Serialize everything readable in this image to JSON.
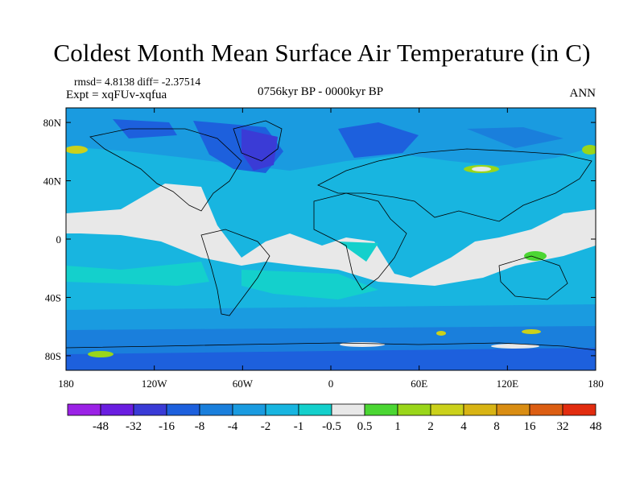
{
  "title": "Coldest Month Mean Surface Air Temperature (in C)",
  "stats_line": "rmsd= 4.8138 diff= -2.37514",
  "experiment_line": "Expt = xqFUv-xqfua",
  "period_line": "0756kyr BP - 0000kyr BP",
  "season": "ANN",
  "colors": {
    "land_outline": "#000000",
    "background": "#ffffff"
  },
  "chart_data": {
    "type": "heatmap",
    "subtype": "global map (cylindrical equidistant) with filled contours of temperature difference",
    "x_ticks": [
      "180",
      "120W",
      "60W",
      "0",
      "60E",
      "120E",
      "180"
    ],
    "y_ticks": [
      "80N",
      "40N",
      "0",
      "40S",
      "80S"
    ],
    "xlim": [
      -180,
      180
    ],
    "ylim": [
      -90,
      90
    ],
    "colorbar": {
      "labels": [
        "-48",
        "-32",
        "-16",
        "-8",
        "-4",
        "-2",
        "-1",
        "-0.5",
        "0.5",
        "1",
        "2",
        "4",
        "8",
        "16",
        "32",
        "48"
      ],
      "colors": [
        "#9b22e6",
        "#6a1ee0",
        "#3a3bd6",
        "#1d60dd",
        "#1a7fdc",
        "#1a9be0",
        "#18b5e0",
        "#14d0cc",
        "#e8e8e8",
        "#4bd633",
        "#9ad61a",
        "#cbd11b",
        "#d8b414",
        "#d98d13",
        "#dc5e13",
        "#e22c0f"
      ]
    }
  }
}
